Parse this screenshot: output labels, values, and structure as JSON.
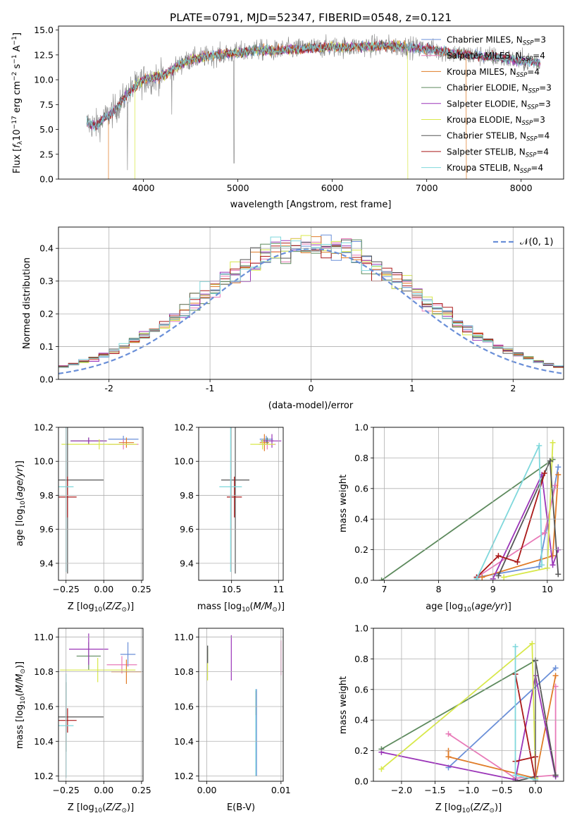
{
  "figure_title": "PLATE=0791, MJD=52347, FIBERID=0548, z=0.121",
  "colors": {
    "chabrier_miles": "#6a8fd8",
    "salpeter_miles": "#e87ab8",
    "kroupa_miles": "#e07b27",
    "chabrier_elodie": "#5d8a5d",
    "salpeter_elodie": "#9b35b8",
    "kroupa_elodie": "#d8e84a",
    "chabrier_stelib": "#555555",
    "salpeter_stelib": "#aa1818",
    "kroupa_stelib": "#7fd8dc",
    "observed": "#808080",
    "normal_curve": "#6a8fd8",
    "grid": "#b0b0b0"
  },
  "chart_data": [
    {
      "id": "spectrum",
      "type": "line",
      "title": "PLATE=0791, MJD=52347, FIBERID=0548, z=0.121",
      "xlabel": "wavelength [Angstrom, rest frame]",
      "ylabel": "Flux [f_λ 10^-17 erg cm^-2 s^-1 A^-1]",
      "xlim": [
        3100,
        8450
      ],
      "ylim": [
        0,
        15.4
      ],
      "xticks": [
        4000,
        5000,
        6000,
        7000,
        8000
      ],
      "yticks": [
        0.0,
        2.5,
        5.0,
        7.5,
        10.0,
        12.5,
        15.0
      ],
      "grid": false,
      "legend_position": "right",
      "continuum": {
        "x": [
          3400,
          3500,
          3600,
          3700,
          3800,
          3900,
          4000,
          4100,
          4200,
          4300,
          4400,
          4500,
          4700,
          4900,
          5000,
          5200,
          5400,
          5600,
          5800,
          6000,
          6200,
          6400,
          6600,
          6800,
          7000,
          7200,
          7400,
          7600,
          7800,
          8000,
          8200
        ],
        "y": [
          5.6,
          5.4,
          6.2,
          7.0,
          8.2,
          9.2,
          10.0,
          10.2,
          10.4,
          11.0,
          11.6,
          12.0,
          12.4,
          12.6,
          12.7,
          13.0,
          12.9,
          13.1,
          13.2,
          13.3,
          13.3,
          13.4,
          13.4,
          13.3,
          13.1,
          12.8,
          12.5,
          12.4,
          12.2,
          11.9,
          11.7
        ]
      },
      "series": [
        {
          "name": "Chabrier MILES, N_SSP=3",
          "color": "#6a8fd8"
        },
        {
          "name": "Salpeter MILES, N_SSP=4",
          "color": "#e87ab8"
        },
        {
          "name": "Kroupa MILES, N_SSP=4",
          "color": "#e07b27"
        },
        {
          "name": "Chabrier ELODIE, N_SSP=3",
          "color": "#5d8a5d"
        },
        {
          "name": "Salpeter ELODIE, N_SSP=3",
          "color": "#9b35b8"
        },
        {
          "name": "Kroupa ELODIE, N_SSP=3",
          "color": "#d8e84a"
        },
        {
          "name": "Chabrier STELIB, N_SSP=4",
          "color": "#555555"
        },
        {
          "name": "Salpeter STELIB, N_SSP=4",
          "color": "#aa1818"
        },
        {
          "name": "Kroupa STELIB, N_SSP=4",
          "color": "#7fd8dc"
        }
      ]
    },
    {
      "id": "residuals",
      "type": "line",
      "xlabel": "(data-model)/error",
      "ylabel": "Normed distribution",
      "xlim": [
        -2.5,
        2.5
      ],
      "ylim": [
        0,
        0.465
      ],
      "xticks": [
        -2,
        -1,
        0,
        1,
        2
      ],
      "yticks": [
        0.0,
        0.1,
        0.2,
        0.3,
        0.4
      ],
      "grid": true,
      "legend_position": "top-right",
      "legend": "𝒩(0, 1)",
      "histogram_bins": {
        "start": -2.5,
        "width": 0.1,
        "count": 50
      }
    },
    {
      "id": "age_vs_Z",
      "type": "scatter",
      "xlabel": "Z [log10(Z/Z⊙)]",
      "ylabel": "age [log10(age/yr)]",
      "xlim": [
        -0.3,
        0.26
      ],
      "ylim": [
        9.3,
        10.2
      ],
      "xticks": [
        -0.25,
        0.0,
        0.25
      ],
      "xticklabels": [
        "−0.25",
        "0.00",
        "0.25"
      ],
      "yticks": [
        9.4,
        9.6,
        9.8,
        10.0,
        10.2
      ],
      "grid": true,
      "points": [
        {
          "series": "Chabrier MILES",
          "x": 0.13,
          "y": 10.13,
          "xerr": 0.1,
          "yerr": 0.02
        },
        {
          "series": "Salpeter MILES",
          "x": 0.13,
          "y": 10.1,
          "xerr": 0.1,
          "yerr": 0.03
        },
        {
          "series": "Kroupa MILES",
          "x": 0.15,
          "y": 10.11,
          "xerr": 0.05,
          "yerr": 0.03
        },
        {
          "series": "Chabrier ELODIE",
          "x": -0.1,
          "y": 10.12,
          "xerr": 0.12,
          "yerr": 0.02
        },
        {
          "series": "Salpeter ELODIE",
          "x": -0.1,
          "y": 10.12,
          "xerr": 0.12,
          "yerr": 0.02
        },
        {
          "series": "Kroupa ELODIE",
          "x": -0.03,
          "y": 10.1,
          "xerr": 0.25,
          "yerr": 0.03
        },
        {
          "series": "Chabrier STELIB",
          "x": -0.24,
          "y": 9.89,
          "xerr": 0.24,
          "yerr": 0.55
        },
        {
          "series": "Salpeter STELIB",
          "x": -0.24,
          "y": 9.79,
          "xerr": 0.06,
          "yerr": 0.12
        },
        {
          "series": "Kroupa STELIB",
          "x": -0.25,
          "y": 9.85,
          "xerr": 0.05,
          "yerr": 0.5
        }
      ]
    },
    {
      "id": "age_vs_mass",
      "type": "scatter",
      "xlabel": "mass [log10(M/M⊙)]",
      "xlim": [
        10.15,
        11.05
      ],
      "ylim": [
        9.3,
        10.2
      ],
      "xticks": [
        10.5,
        11.0
      ],
      "yticks": [
        9.4,
        9.6,
        9.8,
        10.0,
        10.2
      ],
      "grid": true,
      "points": [
        {
          "series": "Chabrier MILES",
          "x": 10.87,
          "y": 10.13,
          "xerr": 0.07,
          "yerr": 0.02
        },
        {
          "series": "Salpeter MILES",
          "x": 10.88,
          "y": 10.1,
          "xerr": 0.09,
          "yerr": 0.03
        },
        {
          "series": "Kroupa MILES",
          "x": 10.85,
          "y": 10.11,
          "xerr": 0.05,
          "yerr": 0.05
        },
        {
          "series": "Chabrier ELODIE",
          "x": 10.88,
          "y": 10.12,
          "xerr": 0.07,
          "yerr": 0.02
        },
        {
          "series": "Salpeter ELODIE",
          "x": 10.93,
          "y": 10.12,
          "xerr": 0.1,
          "yerr": 0.04
        },
        {
          "series": "Kroupa ELODIE",
          "x": 10.83,
          "y": 10.1,
          "xerr": 0.13,
          "yerr": 0.03
        },
        {
          "series": "Chabrier STELIB",
          "x": 10.54,
          "y": 9.89,
          "xerr": 0.15,
          "yerr": 0.55
        },
        {
          "series": "Salpeter STELIB",
          "x": 10.53,
          "y": 9.79,
          "xerr": 0.08,
          "yerr": 0.12
        },
        {
          "series": "Kroupa STELIB",
          "x": 10.49,
          "y": 9.85,
          "xerr": 0.12,
          "yerr": 0.5
        }
      ]
    },
    {
      "id": "weight_vs_age",
      "type": "line",
      "xlabel": "age [log10(age/yr)]",
      "ylabel": "mass weight",
      "xlim": [
        6.8,
        10.3
      ],
      "ylim": [
        0,
        1.0
      ],
      "xticks": [
        7,
        8,
        9,
        10
      ],
      "yticks": [
        0.0,
        0.2,
        0.4,
        0.6,
        0.8,
        1.0
      ],
      "grid": true,
      "series": [
        {
          "name": "Chabrier MILES",
          "x": [
            8.7,
            9.85,
            10.2
          ],
          "y": [
            0.02,
            0.09,
            0.74
          ]
        },
        {
          "name": "Salpeter MILES",
          "x": [
            8.7,
            9.95,
            10.15
          ],
          "y": [
            0.02,
            0.31,
            0.62
          ]
        },
        {
          "name": "Kroupa MILES",
          "x": [
            8.8,
            10.1,
            10.2
          ],
          "y": [
            0.02,
            0.16,
            0.69
          ]
        },
        {
          "name": "Chabrier ELODIE",
          "x": [
            6.95,
            10.1
          ],
          "y": [
            0.0,
            0.79
          ]
        },
        {
          "name": "Salpeter ELODIE",
          "x": [
            9.0,
            9.9,
            10.1,
            10.2
          ],
          "y": [
            0.01,
            0.69,
            0.1,
            0.2
          ]
        },
        {
          "name": "Kroupa ELODIE",
          "x": [
            9.2,
            10.0,
            10.1
          ],
          "y": [
            0.02,
            0.08,
            0.9
          ]
        },
        {
          "name": "Chabrier STELIB",
          "x": [
            9.1,
            10.05,
            10.2
          ],
          "y": [
            0.03,
            0.78,
            0.04
          ]
        },
        {
          "name": "Salpeter STELIB",
          "x": [
            8.7,
            9.1,
            9.45,
            9.95
          ],
          "y": [
            0.02,
            0.16,
            0.12,
            0.7
          ]
        },
        {
          "name": "Kroupa STELIB",
          "x": [
            8.7,
            9.85,
            9.9
          ],
          "y": [
            0.01,
            0.88,
            0.1
          ]
        }
      ]
    },
    {
      "id": "mass_vs_Z",
      "type": "scatter",
      "xlabel": "Z [log10(Z/Z⊙)]",
      "ylabel": "mass [log10(M/M⊙)]",
      "xlim": [
        -0.3,
        0.26
      ],
      "ylim": [
        10.17,
        11.05
      ],
      "xticks": [
        -0.25,
        0.0,
        0.25
      ],
      "xticklabels": [
        "−0.25",
        "0.00",
        "0.25"
      ],
      "yticks": [
        10.2,
        10.4,
        10.6,
        10.8,
        11.0
      ],
      "grid": true,
      "points": [
        {
          "series": "Chabrier MILES",
          "x": 0.16,
          "y": 10.9,
          "xerr": 0.05,
          "yerr": 0.07
        },
        {
          "series": "Salpeter MILES",
          "x": 0.12,
          "y": 10.84,
          "xerr": 0.1,
          "yerr": 0.05
        },
        {
          "series": "Kroupa MILES",
          "x": 0.15,
          "y": 10.8,
          "xerr": 0.1,
          "yerr": 0.07
        },
        {
          "series": "Chabrier ELODIE",
          "x": -0.1,
          "y": 10.89,
          "xerr": 0.08,
          "yerr": 0.08
        },
        {
          "series": "Salpeter ELODIE",
          "x": -0.1,
          "y": 10.93,
          "xerr": 0.13,
          "yerr": 0.09
        },
        {
          "series": "Kroupa ELODIE",
          "x": -0.04,
          "y": 10.81,
          "xerr": 0.25,
          "yerr": 0.07
        },
        {
          "series": "Chabrier STELIB",
          "x": -0.25,
          "y": 10.54,
          "xerr": 0.25,
          "yerr": 0.2
        },
        {
          "series": "Salpeter STELIB",
          "x": -0.24,
          "y": 10.52,
          "xerr": 0.06,
          "yerr": 0.07
        },
        {
          "series": "Kroupa STELIB",
          "x": -0.25,
          "y": 10.49,
          "xerr": 0.05,
          "yerr": 0.3
        }
      ]
    },
    {
      "id": "mass_vs_ebv",
      "type": "scatter",
      "xlabel": "E(B-V)",
      "xlim": [
        -0.0011,
        0.0103
      ],
      "ylim": [
        10.17,
        11.05
      ],
      "xticks": [
        0.0,
        0.01
      ],
      "xticklabels": [
        "0.00",
        "0.01"
      ],
      "yticks": [
        10.2,
        10.4,
        10.6,
        10.8,
        11.0
      ],
      "grid": true,
      "points": [
        {
          "series": "Chabrier MILES",
          "x": 0.0067,
          "y": 10.45,
          "yerr": 0.25
        },
        {
          "series": "Salpeter MILES",
          "x": 0.01,
          "y": 10.88,
          "yerr": 0.1
        },
        {
          "series": "Kroupa ELODIE",
          "x": 0.0001,
          "y": 10.84,
          "yerr": 0.09
        },
        {
          "series": "Chabrier ELODIE",
          "x": 0.0001,
          "y": 10.9,
          "yerr": 0.05
        },
        {
          "series": "Salpeter ELODIE",
          "x": 0.0033,
          "y": 10.88,
          "yerr": 0.13
        },
        {
          "series": "Chabrier STELIB",
          "x": 0.0001,
          "y": 10.9,
          "yerr": 0.05
        },
        {
          "series": "Salpeter STELIB",
          "x": 0.0066,
          "y": 10.62,
          "yerr": 0.07
        },
        {
          "series": "Kroupa STELIB",
          "x": 0.0066,
          "y": 10.45,
          "yerr": 0.25
        }
      ]
    },
    {
      "id": "weight_vs_Z",
      "type": "line",
      "xlabel": "Z [log10(Z/Z⊙)]",
      "ylabel": "mass weight",
      "xlim": [
        -2.42,
        0.42
      ],
      "ylim": [
        0,
        1.0
      ],
      "xticks": [
        -2.0,
        -1.5,
        -1.0,
        -0.5,
        0.0
      ],
      "xticklabels": [
        "−2.0",
        "−1.5",
        "−1.0",
        "−0.5",
        "0.0"
      ],
      "yticks": [
        0.0,
        0.2,
        0.4,
        0.6,
        0.8,
        1.0
      ],
      "grid": true,
      "series": [
        {
          "name": "Chabrier MILES",
          "x": [
            -1.3,
            0.3
          ],
          "y": [
            0.09,
            0.74
          ]
        },
        {
          "name": "Salpeter MILES",
          "x": [
            -1.3,
            -0.3,
            0.3,
            0.3
          ],
          "y": [
            0.31,
            0.02,
            0.04,
            0.62
          ]
        },
        {
          "name": "Kroupa MILES",
          "x": [
            -1.3,
            -1.3,
            0.0,
            0.3
          ],
          "y": [
            0.2,
            0.16,
            0.02,
            0.69
          ]
        },
        {
          "name": "Chabrier ELODIE",
          "x": [
            -2.3,
            0.0
          ],
          "y": [
            0.21,
            0.79
          ]
        },
        {
          "name": "Salpeter ELODIE",
          "x": [
            -2.3,
            -0.3,
            0.0,
            0.3
          ],
          "y": [
            0.19,
            0.01,
            0.69,
            0.03
          ]
        },
        {
          "name": "Kroupa ELODIE",
          "x": [
            -2.3,
            -0.05,
            0.0
          ],
          "y": [
            0.08,
            0.9,
            0.02
          ]
        },
        {
          "name": "Chabrier STELIB",
          "x": [
            -0.3,
            0.0,
            0.0,
            0.3
          ],
          "y": [
            0.0,
            0.03,
            0.79,
            0.04
          ]
        },
        {
          "name": "Salpeter STELIB",
          "x": [
            -0.3,
            0.0,
            0.0,
            -0.3
          ],
          "y": [
            0.13,
            0.16,
            0.0,
            0.7
          ]
        },
        {
          "name": "Kroupa STELIB",
          "x": [
            -0.3,
            -0.3,
            0.0
          ],
          "y": [
            0.88,
            0.04,
            0.01
          ]
        }
      ]
    }
  ]
}
